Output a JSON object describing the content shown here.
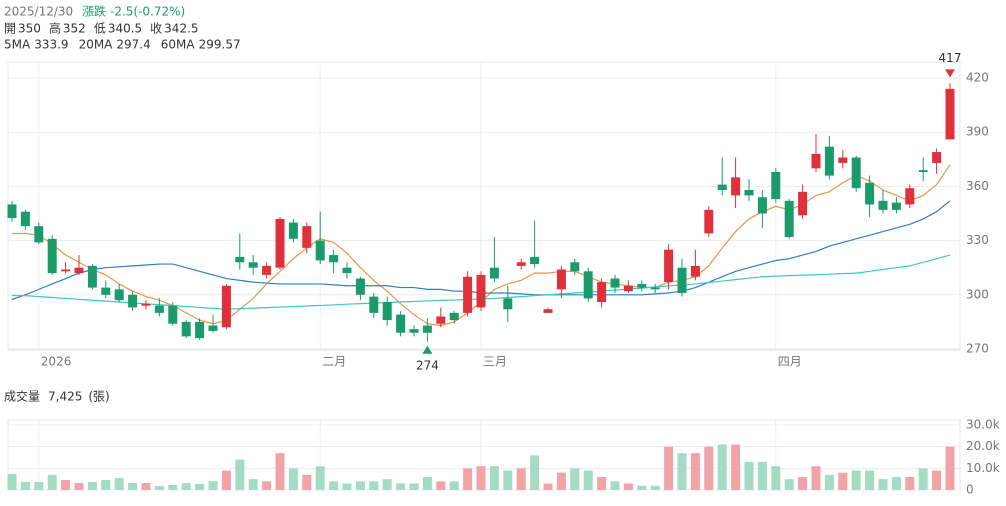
{
  "header": {
    "date": "2025/12/30",
    "change_label": "漲跌",
    "change": "-2.5(-0.72%)",
    "ohlc": [
      {
        "label": "開",
        "value": "350"
      },
      {
        "label": "高",
        "value": "352"
      },
      {
        "label": "低",
        "value": "340.5"
      },
      {
        "label": "收",
        "value": "342.5"
      }
    ]
  },
  "chart_data": [
    {
      "type": "candlestick",
      "up_color": "#e0303c",
      "down_color": "#1b9a6c",
      "categories": [
        null,
        null,
        "2026",
        null,
        null,
        null,
        null,
        null,
        null,
        null,
        null,
        null,
        null,
        null,
        null,
        null,
        null,
        null,
        null,
        null,
        null,
        null,
        null,
        "二月",
        null,
        null,
        null,
        null,
        null,
        null,
        null,
        null,
        null,
        null,
        null,
        "三月",
        null,
        null,
        null,
        null,
        null,
        null,
        null,
        null,
        null,
        null,
        null,
        null,
        null,
        null,
        null,
        null,
        null,
        null,
        null,
        null,
        null,
        "四月",
        null,
        null,
        null,
        null,
        null,
        null,
        null,
        null,
        null,
        null,
        null,
        null,
        null
      ],
      "open": [
        350,
        346,
        338,
        331,
        313,
        312,
        316,
        304,
        303,
        300,
        294,
        294,
        294,
        285,
        285,
        283,
        282,
        321,
        318,
        311,
        315,
        340,
        326,
        330,
        322,
        315,
        309,
        299,
        296,
        289,
        281,
        283,
        284,
        290,
        290,
        293,
        315,
        298,
        316,
        321,
        290,
        303,
        318,
        313,
        296,
        309,
        302,
        306,
        304,
        307,
        315,
        310,
        334,
        361,
        355,
        358,
        354,
        368,
        352,
        344,
        370,
        382,
        373,
        376,
        362,
        352,
        351,
        350,
        369,
        373,
        386
      ],
      "high": [
        352,
        347,
        340,
        333,
        318,
        322,
        317,
        308,
        306,
        302,
        297,
        298,
        296,
        286,
        287,
        289,
        306,
        334,
        322,
        318,
        343,
        342,
        340,
        346,
        325,
        318,
        310,
        301,
        299,
        291,
        283,
        287,
        293,
        291,
        313,
        313,
        332,
        305,
        320,
        341,
        293,
        316,
        320,
        315,
        309,
        311,
        308,
        308,
        306,
        328,
        320,
        325,
        349,
        376,
        376,
        364,
        358,
        370,
        353,
        361,
        389,
        388,
        380,
        377,
        366,
        358,
        354,
        361,
        376,
        381,
        417
      ],
      "low": [
        340.5,
        336,
        328,
        311,
        312,
        311,
        303,
        298,
        296,
        291,
        292,
        288,
        283,
        276,
        275,
        279,
        281,
        314,
        311,
        309,
        314,
        329,
        323,
        317,
        312,
        309,
        297,
        287,
        283,
        277,
        277,
        274,
        282,
        284,
        288,
        291,
        307,
        285,
        314,
        315,
        290,
        298,
        311,
        296,
        293,
        301,
        301,
        302,
        301,
        303,
        299,
        308,
        332,
        355,
        348,
        352,
        337,
        351,
        331,
        342,
        368,
        364,
        370,
        357,
        343,
        345,
        345,
        348,
        363,
        367,
        386
      ],
      "close": [
        342.5,
        338,
        329,
        312,
        314,
        315,
        304,
        300,
        297,
        293,
        295,
        290,
        284,
        277,
        276,
        280,
        305,
        318,
        315,
        316,
        342,
        331,
        338,
        319,
        318,
        312,
        300,
        290,
        286,
        279,
        279,
        279,
        288,
        286,
        310,
        311,
        309,
        292,
        318,
        317,
        292,
        314,
        313,
        298,
        307,
        304,
        305,
        304,
        303,
        325,
        301,
        316,
        347,
        358,
        365,
        355,
        345,
        353,
        332,
        357,
        378,
        366,
        376,
        359,
        350,
        347,
        347,
        359,
        368,
        379,
        414
      ],
      "series": [
        {
          "name": "5MA",
          "color": "#e8954a",
          "values": [
            333.9,
            334,
            333,
            328,
            322,
            318,
            314,
            311,
            306,
            302,
            299,
            297,
            294,
            290,
            286,
            284,
            286,
            292,
            298,
            306,
            313,
            320,
            326,
            331,
            329,
            323,
            315,
            308,
            302,
            295,
            289,
            284,
            283,
            285,
            290,
            296,
            303,
            306,
            308,
            312,
            312,
            313,
            313,
            310,
            307,
            306,
            305,
            304,
            304,
            307,
            308,
            310,
            316,
            326,
            335,
            342,
            346,
            349,
            347,
            350,
            355,
            357,
            362,
            366,
            363,
            358,
            355,
            352,
            355,
            361,
            372
          ]
        },
        {
          "name": "20MA",
          "color": "#2f7fc1",
          "values": [
            297.4,
            300,
            303,
            306,
            309,
            312,
            314,
            315,
            315.5,
            316,
            316.5,
            317,
            317,
            315,
            313,
            311,
            309,
            308,
            307,
            306.5,
            306,
            306,
            306,
            306,
            305.5,
            305,
            305,
            305,
            305,
            304,
            304,
            303,
            303,
            302,
            302,
            301,
            301,
            301,
            300.5,
            300,
            300,
            300,
            300,
            300,
            300,
            300,
            300,
            300,
            300.5,
            301,
            302,
            304,
            307,
            310,
            313,
            315,
            317,
            319,
            320,
            322,
            324,
            327,
            329,
            331,
            333,
            335,
            337,
            339,
            342,
            346,
            352
          ]
        },
        {
          "name": "60MA",
          "color": "#3cc7c0",
          "values": [
            299.57,
            299.5,
            299,
            298.5,
            298,
            297.5,
            297,
            296.5,
            296,
            295.5,
            295,
            294.5,
            294,
            293.5,
            293,
            292.5,
            292,
            292.3,
            292.6,
            292.9,
            293.2,
            293.5,
            293.8,
            294.1,
            294.4,
            294.8,
            295.1,
            295.4,
            295.7,
            296,
            296.3,
            296.6,
            296.9,
            297.1,
            297.4,
            297.7,
            298,
            298.5,
            299,
            299.5,
            300,
            300.5,
            301,
            301.5,
            302,
            302.6,
            303.1,
            303.7,
            304.3,
            304.9,
            305.4,
            306,
            306.8,
            307.6,
            308.4,
            309.2,
            310,
            310.3,
            310.6,
            310.9,
            311.1,
            311.4,
            311.7,
            312,
            313,
            314,
            315,
            316,
            318,
            320,
            322
          ]
        }
      ],
      "ylim": [
        270,
        420
      ],
      "yticks": [
        270,
        300,
        330,
        360,
        390,
        420
      ],
      "grid": true
    },
    {
      "type": "bar",
      "title": "成交量",
      "readout": "7,425",
      "unit": "(張)",
      "up_color": "#f2a3a8",
      "down_color": "#a3dbc5",
      "values": [
        7425,
        3700,
        3700,
        7000,
        4600,
        3200,
        3700,
        4600,
        5500,
        3200,
        3200,
        1800,
        2300,
        3200,
        2800,
        4100,
        9000,
        14000,
        5000,
        4000,
        17000,
        10000,
        7000,
        11000,
        4000,
        3000,
        4000,
        4000,
        5000,
        3000,
        3000,
        6000,
        4000,
        4000,
        10000,
        11000,
        11000,
        9000,
        10000,
        16000,
        3000,
        8000,
        10000,
        9000,
        6000,
        4000,
        3000,
        2000,
        2000,
        20000,
        17000,
        17000,
        20000,
        21000,
        21000,
        13000,
        13000,
        11000,
        5000,
        6000,
        11000,
        7000,
        8000,
        9000,
        9000,
        5000,
        6000,
        6000,
        10000,
        9000,
        20000
      ],
      "ylim": [
        0,
        30000
      ],
      "yticks": [
        0,
        {
          "value": 10000,
          "label": "10.0k"
        },
        {
          "value": 20000,
          "label": "20.0k"
        },
        {
          "value": 30000,
          "label": "30.0k"
        }
      ],
      "grid": true
    }
  ]
}
